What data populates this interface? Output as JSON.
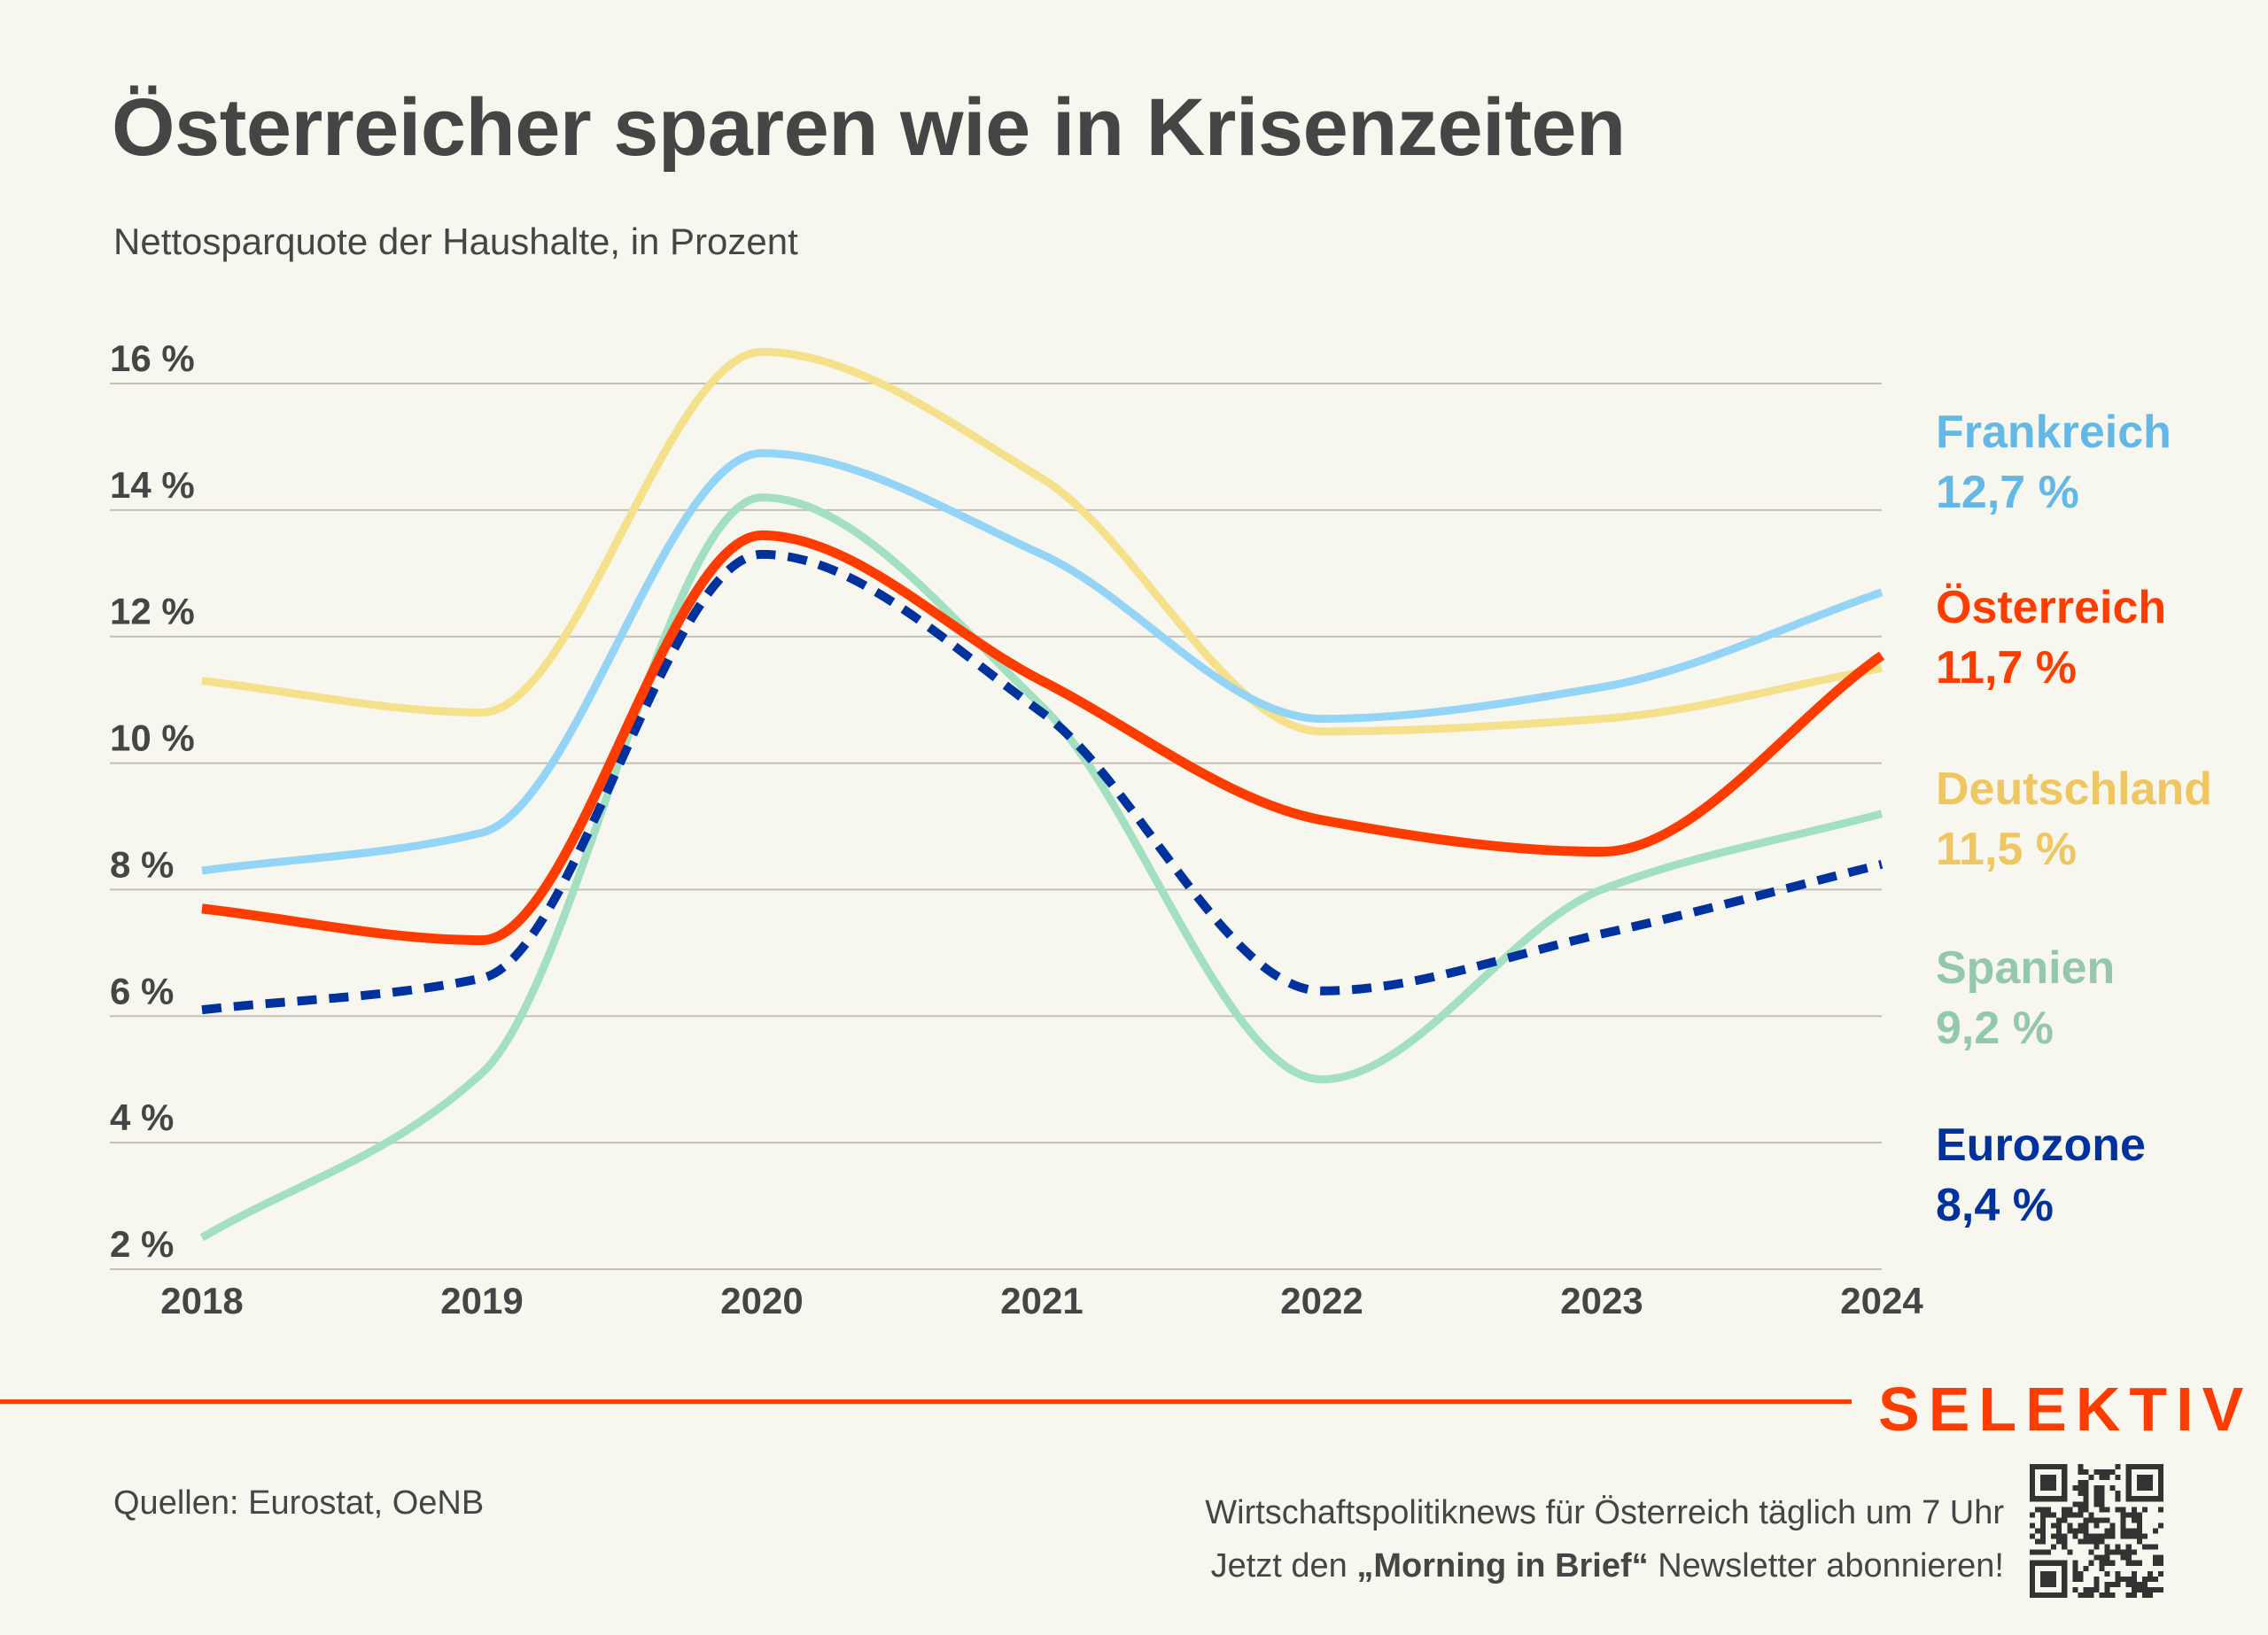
{
  "header": {
    "title": "Österreicher sparen wie in Krisenzeiten",
    "subtitle": "Nettosparquote der Haushalte, in Prozent"
  },
  "chart_data": {
    "type": "line",
    "title": "Österreicher sparen wie in Krisenzeiten",
    "subtitle": "Nettosparquote der Haushalte, in Prozent",
    "xlabel": "",
    "ylabel": "",
    "x": [
      2018,
      2019,
      2020,
      2021,
      2022,
      2023,
      2024
    ],
    "x_tick_labels": [
      "2018",
      "2019",
      "2020",
      "2021",
      "2022",
      "2023",
      "2024"
    ],
    "ylim": [
      2,
      16
    ],
    "y_ticks": [
      2,
      4,
      6,
      8,
      10,
      12,
      14,
      16
    ],
    "y_tick_labels": [
      "2 %",
      "4 %",
      "6 %",
      "8 %",
      "10 %",
      "12 %",
      "14 %",
      "16 %"
    ],
    "grid": true,
    "legend": "right (direct labels at line ends)",
    "series": [
      {
        "name": "Frankreich",
        "label_value": "12,7 %",
        "color": "#94d4f7",
        "label_color": "#62b8e6",
        "dashed": false,
        "values": [
          8.3,
          8.9,
          14.9,
          13.3,
          10.7,
          11.2,
          12.7
        ]
      },
      {
        "name": "Österreich",
        "label_value": "11,7 %",
        "color": "#ff3c00",
        "label_color": "#ff3c00",
        "dashed": false,
        "values": [
          7.7,
          7.2,
          13.6,
          11.3,
          9.1,
          8.6,
          11.7
        ]
      },
      {
        "name": "Deutschland",
        "label_value": "11,5 %",
        "color": "#f5e08b",
        "label_color": "#efc65f",
        "dashed": false,
        "values": [
          11.3,
          10.8,
          16.5,
          14.5,
          10.5,
          10.7,
          11.5
        ]
      },
      {
        "name": "Spanien",
        "label_value": "9,2 %",
        "color": "#a3e0c2",
        "label_color": "#94c8ad",
        "dashed": false,
        "values": [
          2.5,
          5.1,
          14.2,
          10.9,
          5.0,
          8.0,
          9.2
        ]
      },
      {
        "name": "Eurozone",
        "label_value": "8,4 %",
        "color": "#00329e",
        "label_color": "#00329e",
        "dashed": true,
        "values": [
          6.1,
          6.6,
          13.3,
          10.8,
          6.4,
          7.3,
          8.4
        ]
      }
    ]
  },
  "footer": {
    "brand": "SELEKTIV",
    "sources": "Quellen: Eurostat, OeNB",
    "promo_line1": "Wirtschaftspolitiknews für Österreich täglich um 7 Uhr",
    "promo_line2_pre": "Jetzt den ",
    "promo_line2_bold": "„Morning in Brief“",
    "promo_line2_post": " Newsletter abonnieren!",
    "qr_icon": "qr-code-icon"
  },
  "colors": {
    "background": "#f8f7ef",
    "text": "#454545",
    "gridline": "#c2c0b8",
    "accent": "#ff3c00"
  }
}
